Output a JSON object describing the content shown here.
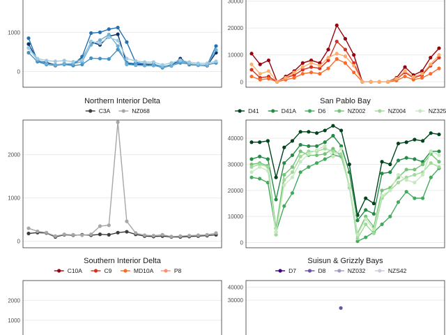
{
  "chart_data": [
    {
      "type": "line",
      "title": "",
      "legend": [],
      "yticks": [
        0,
        1000
      ],
      "ylim": [
        -400,
        2000
      ],
      "series": [
        {
          "color": "#08306b",
          "values": [
            700,
            280,
            230,
            170,
            190,
            200,
            320,
            750,
            680,
            900,
            950,
            200,
            180,
            170,
            160,
            100,
            150,
            330,
            180,
            160,
            150,
            480
          ]
        },
        {
          "color": "#2171b5",
          "values": [
            850,
            270,
            200,
            150,
            200,
            180,
            380,
            980,
            1000,
            1080,
            1120,
            750,
            230,
            200,
            190,
            120,
            170,
            280,
            200,
            170,
            160,
            650
          ]
        },
        {
          "color": "#4292c6",
          "values": [
            480,
            250,
            180,
            160,
            180,
            150,
            180,
            340,
            330,
            320,
            560,
            230,
            200,
            200,
            180,
            130,
            150,
            220,
            190,
            160,
            170,
            220
          ]
        },
        {
          "color": "#6baed6",
          "values": [
            600,
            300,
            200,
            170,
            200,
            200,
            250,
            680,
            800,
            940,
            650,
            180,
            160,
            150,
            150,
            110,
            140,
            260,
            200,
            160,
            160,
            550
          ]
        },
        {
          "color": "#9ecae1",
          "values": [
            600,
            330,
            280,
            260,
            280,
            250,
            290,
            770,
            720,
            870,
            790,
            330,
            270,
            240,
            240,
            170,
            220,
            290,
            240,
            210,
            210,
            260
          ]
        }
      ]
    },
    {
      "type": "line",
      "title": "",
      "legend": [],
      "yticks": [
        0,
        10000,
        20000,
        30000
      ],
      "ylim": [
        -2000,
        33000
      ],
      "series": [
        {
          "color": "#99000d",
          "values": [
            10500,
            6500,
            8000,
            0,
            2000,
            4000,
            7000,
            8000,
            7000,
            12000,
            21000,
            16000,
            10000,
            0,
            0,
            0,
            0,
            1500,
            5500,
            2500,
            4000,
            9000,
            12500
          ]
        },
        {
          "color": "#d7301f",
          "values": [
            4500,
            1500,
            2000,
            0,
            1500,
            2500,
            4500,
            5500,
            5000,
            8000,
            15000,
            12000,
            7000,
            0,
            0,
            0,
            0,
            1000,
            3500,
            1500,
            2500,
            6000,
            9000
          ]
        },
        {
          "color": "#fc6a2a",
          "values": [
            2000,
            800,
            1200,
            0,
            800,
            1500,
            3000,
            3500,
            3000,
            5000,
            8500,
            7000,
            3500,
            0,
            0,
            0,
            0,
            500,
            2000,
            800,
            1500,
            3000,
            5000
          ]
        },
        {
          "color": "#fdae6b",
          "values": [
            6500,
            3000,
            4000,
            0,
            1500,
            3500,
            5500,
            7000,
            6000,
            9000,
            10500,
            9500,
            6000,
            0,
            0,
            0,
            0,
            1200,
            4000,
            1800,
            3000,
            6500,
            10000
          ]
        }
      ]
    },
    {
      "type": "line",
      "title": "Northern Interior Delta",
      "legend": [
        "C3A",
        "NZ068"
      ],
      "yticks": [
        0,
        1000,
        2000
      ],
      "ylim": [
        -150,
        2800
      ],
      "series": [
        {
          "name": "C3A",
          "color": "#3c3c3c",
          "values": [
            180,
            200,
            190,
            100,
            150,
            140,
            150,
            140,
            160,
            150,
            200,
            220,
            160,
            120,
            110,
            120,
            100,
            100,
            110,
            120,
            130,
            150
          ]
        },
        {
          "name": "NZ068",
          "color": "#a6a6a6",
          "values": [
            300,
            230,
            200,
            120,
            160,
            150,
            140,
            160,
            350,
            370,
            2750,
            460,
            190,
            140,
            130,
            150,
            110,
            120,
            130,
            140,
            150,
            190
          ]
        }
      ]
    },
    {
      "type": "line",
      "title": "San Pablo Bay",
      "legend": [
        "D41",
        "D41A",
        "D6",
        "NZ002",
        "NZ004",
        "NZ325"
      ],
      "yticks": [
        0,
        10000,
        20000,
        30000,
        40000
      ],
      "ylim": [
        -2000,
        47000
      ],
      "series": [
        {
          "name": "D41",
          "color": "#00441b",
          "values": [
            38500,
            38500,
            39000,
            25000,
            36500,
            39000,
            42500,
            42500,
            42000,
            43000,
            44800,
            43000,
            30000,
            10500,
            17000,
            15000,
            31000,
            30000,
            38000,
            38500,
            39500,
            39000,
            42000,
            41500
          ]
        },
        {
          "name": "D41A",
          "color": "#238b45",
          "values": [
            32000,
            33000,
            32000,
            16500,
            30500,
            33500,
            37500,
            37000,
            37000,
            38500,
            41000,
            37000,
            27000,
            8500,
            12500,
            11000,
            26500,
            27000,
            31500,
            32500,
            32000,
            31000,
            35000,
            35000
          ]
        },
        {
          "name": "D6",
          "color": "#41ab5d",
          "values": [
            25000,
            24500,
            23000,
            4000,
            14000,
            19000,
            27000,
            29000,
            30500,
            32000,
            33500,
            33000,
            22000,
            500,
            2000,
            4000,
            7000,
            10000,
            15500,
            19500,
            17000,
            17000,
            25000,
            28500
          ]
        },
        {
          "name": "NZ002",
          "color": "#74c476",
          "values": [
            30000,
            30500,
            29500,
            5500,
            26000,
            29000,
            35000,
            33500,
            33500,
            34000,
            36000,
            33000,
            22000,
            3500,
            10000,
            6000,
            20000,
            21000,
            25000,
            28000,
            28000,
            30000,
            34000,
            31000
          ]
        },
        {
          "name": "NZ004",
          "color": "#a1d99b",
          "values": [
            29000,
            30000,
            29000,
            3000,
            24000,
            27000,
            33000,
            35000,
            35000,
            36000,
            35000,
            34000,
            21000,
            1500,
            7000,
            3500,
            17000,
            20000,
            23000,
            25000,
            26000,
            27000,
            30500,
            29000
          ]
        },
        {
          "name": "NZ325",
          "color": "#c7e9c0",
          "values": [
            27000,
            29000,
            27500,
            4000,
            22000,
            25000,
            31000,
            34000,
            35500,
            37000,
            33000,
            36000,
            22000,
            3000,
            9000,
            5000,
            18000,
            20000,
            26000,
            24000,
            23000,
            26000,
            35000,
            33500
          ]
        }
      ]
    },
    {
      "type": "line",
      "title": "Southern Interior Delta",
      "legend": [
        "C10A",
        "C9",
        "MD10A",
        "P8"
      ],
      "yticks": [
        1000,
        2000
      ],
      "ylim": [
        -100,
        3000
      ],
      "series": []
    },
    {
      "type": "line",
      "title": "Suisun & Grizzly Bays",
      "legend": [
        "D7",
        "D8",
        "NZ032",
        "NZS42"
      ],
      "yticks": [
        30000,
        40000
      ],
      "ylim": [
        -2000,
        45000
      ],
      "series": [
        {
          "name": "D8",
          "color": "#6a51a3",
          "values": [
            null,
            null,
            null,
            null,
            null,
            null,
            null,
            null,
            null,
            null,
            24000,
            null,
            null,
            null,
            null,
            null,
            null,
            null,
            null,
            null,
            null,
            null
          ]
        }
      ]
    }
  ],
  "legend_colors": [
    [],
    [],
    [
      "#3c3c3c",
      "#a6a6a6"
    ],
    [
      "#00441b",
      "#238b45",
      "#41ab5d",
      "#74c476",
      "#a1d99b",
      "#c7e9c0"
    ],
    [
      "#99000d",
      "#d7301f",
      "#fc6a2a",
      "#fc9272"
    ],
    [
      "#3f007d",
      "#6a51a3",
      "#9e9ac8",
      "#cbc9e2"
    ]
  ]
}
